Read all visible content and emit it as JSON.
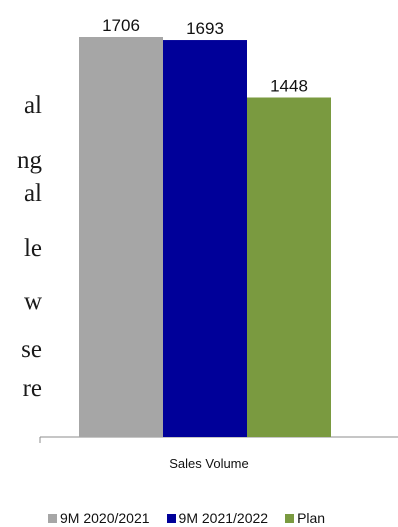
{
  "side_text_fragments": [
    "al",
    "ng",
    "al",
    "le",
    "w",
    "se",
    "re"
  ],
  "chart_data": {
    "type": "bar",
    "categories": [
      "Sales Volume"
    ],
    "series": [
      {
        "name": "9M 2020/2021",
        "values": [
          1706
        ],
        "color": "#a6a6a6"
      },
      {
        "name": "9M 2021/2022",
        "values": [
          1693
        ],
        "color": "#000099"
      },
      {
        "name": "Plan",
        "values": [
          1448
        ],
        "color": "#7a9a40"
      }
    ],
    "title": "",
    "xlabel": "",
    "ylabel": "",
    "ylim": [
      0,
      1706
    ],
    "grid": false,
    "legend_position": "bottom"
  }
}
